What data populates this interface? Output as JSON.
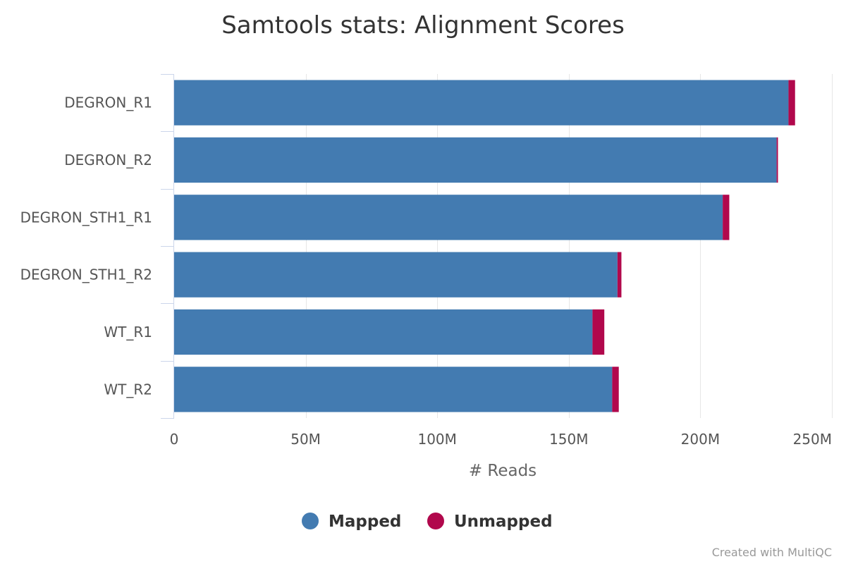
{
  "chart_data": {
    "type": "bar",
    "orientation": "horizontal",
    "stacked": true,
    "title": "Samtools stats: Alignment Scores",
    "xlabel": "# Reads",
    "ylabel": "",
    "categories": [
      "DEGRON_R1",
      "DEGRON_R2",
      "DEGRON_STH1_R1",
      "DEGRON_STH1_R2",
      "WT_R1",
      "WT_R2"
    ],
    "series": [
      {
        "name": "Mapped",
        "color": "#437bb1",
        "values": [
          233.5,
          229.0,
          208.5,
          168.5,
          159.0,
          166.5
        ]
      },
      {
        "name": "Unmapped",
        "color": "#b1084c",
        "values": [
          2.5,
          0.5,
          2.5,
          1.5,
          4.5,
          2.5
        ]
      }
    ],
    "xlim": [
      0,
      250
    ],
    "x_ticks": [
      0,
      50,
      100,
      150,
      200,
      250
    ],
    "x_tick_labels": [
      "0",
      "50M",
      "100M",
      "150M",
      "200M",
      "250M"
    ],
    "grid": true,
    "legend_position": "bottom-center",
    "credit": "Created with MultiQC"
  }
}
